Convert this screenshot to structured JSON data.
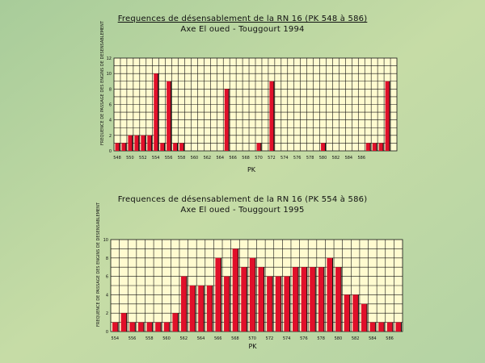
{
  "colors": {
    "plot_bg": "#fffbd0",
    "grid": "#111111",
    "bar": "#e0102a",
    "bar_shadow": "#111111"
  },
  "chart_data": [
    {
      "type": "bar",
      "title": "Frequences de désensablement de la RN 16 (PK 548 à 586)",
      "subtitle": "Axe El oued - Touggourt  1994",
      "xlabel": "PK",
      "ylabel": "FREQUENCE DE PASSAGE DES ENGINS DE DESENSABLEMENT",
      "ylim": [
        0,
        12
      ],
      "yticks": [
        "0",
        "2",
        "4",
        "6",
        "8",
        "10",
        "12"
      ],
      "xtick_labels": [
        "548",
        "550",
        "552",
        "554",
        "556",
        "558",
        "560",
        "562",
        "564",
        "566",
        "568",
        "570",
        "572",
        "574",
        "576",
        "578",
        "580",
        "582",
        "584",
        "586"
      ],
      "values": [
        1,
        1,
        2,
        2,
        2,
        2,
        10,
        1,
        9,
        1,
        1,
        0,
        0,
        0,
        0,
        0,
        0,
        8,
        0,
        0,
        0,
        0,
        1,
        0,
        9,
        0,
        0,
        0,
        0,
        0,
        0,
        0,
        1,
        0,
        0,
        0,
        0,
        0,
        0,
        1,
        1,
        1,
        9,
        0
      ],
      "grid": true
    },
    {
      "type": "bar",
      "title": "Frequences de désensablement de la RN 16 (PK 554 à 586)",
      "subtitle": "Axe El oued - Touggourt 1995",
      "xlabel": "PK",
      "ylabel": "FREQUENCE DE PASSAGE DES ENGINS DE DESENSABLEMENT",
      "ylim": [
        0,
        10
      ],
      "yticks": [
        "0",
        "2",
        "4",
        "6",
        "8",
        "10"
      ],
      "xtick_labels": [
        "554",
        "556",
        "558",
        "560",
        "562",
        "564",
        "566",
        "568",
        "570",
        "572",
        "574",
        "576",
        "578",
        "580",
        "582",
        "584",
        "586"
      ],
      "values": [
        1,
        2,
        1,
        1,
        1,
        1,
        1,
        2,
        6,
        5,
        5,
        5,
        8,
        6,
        9,
        7,
        8,
        7,
        6,
        6,
        6,
        7,
        7,
        7,
        7,
        8,
        7,
        4,
        4,
        3,
        1,
        1,
        1,
        1
      ],
      "grid": true
    }
  ]
}
